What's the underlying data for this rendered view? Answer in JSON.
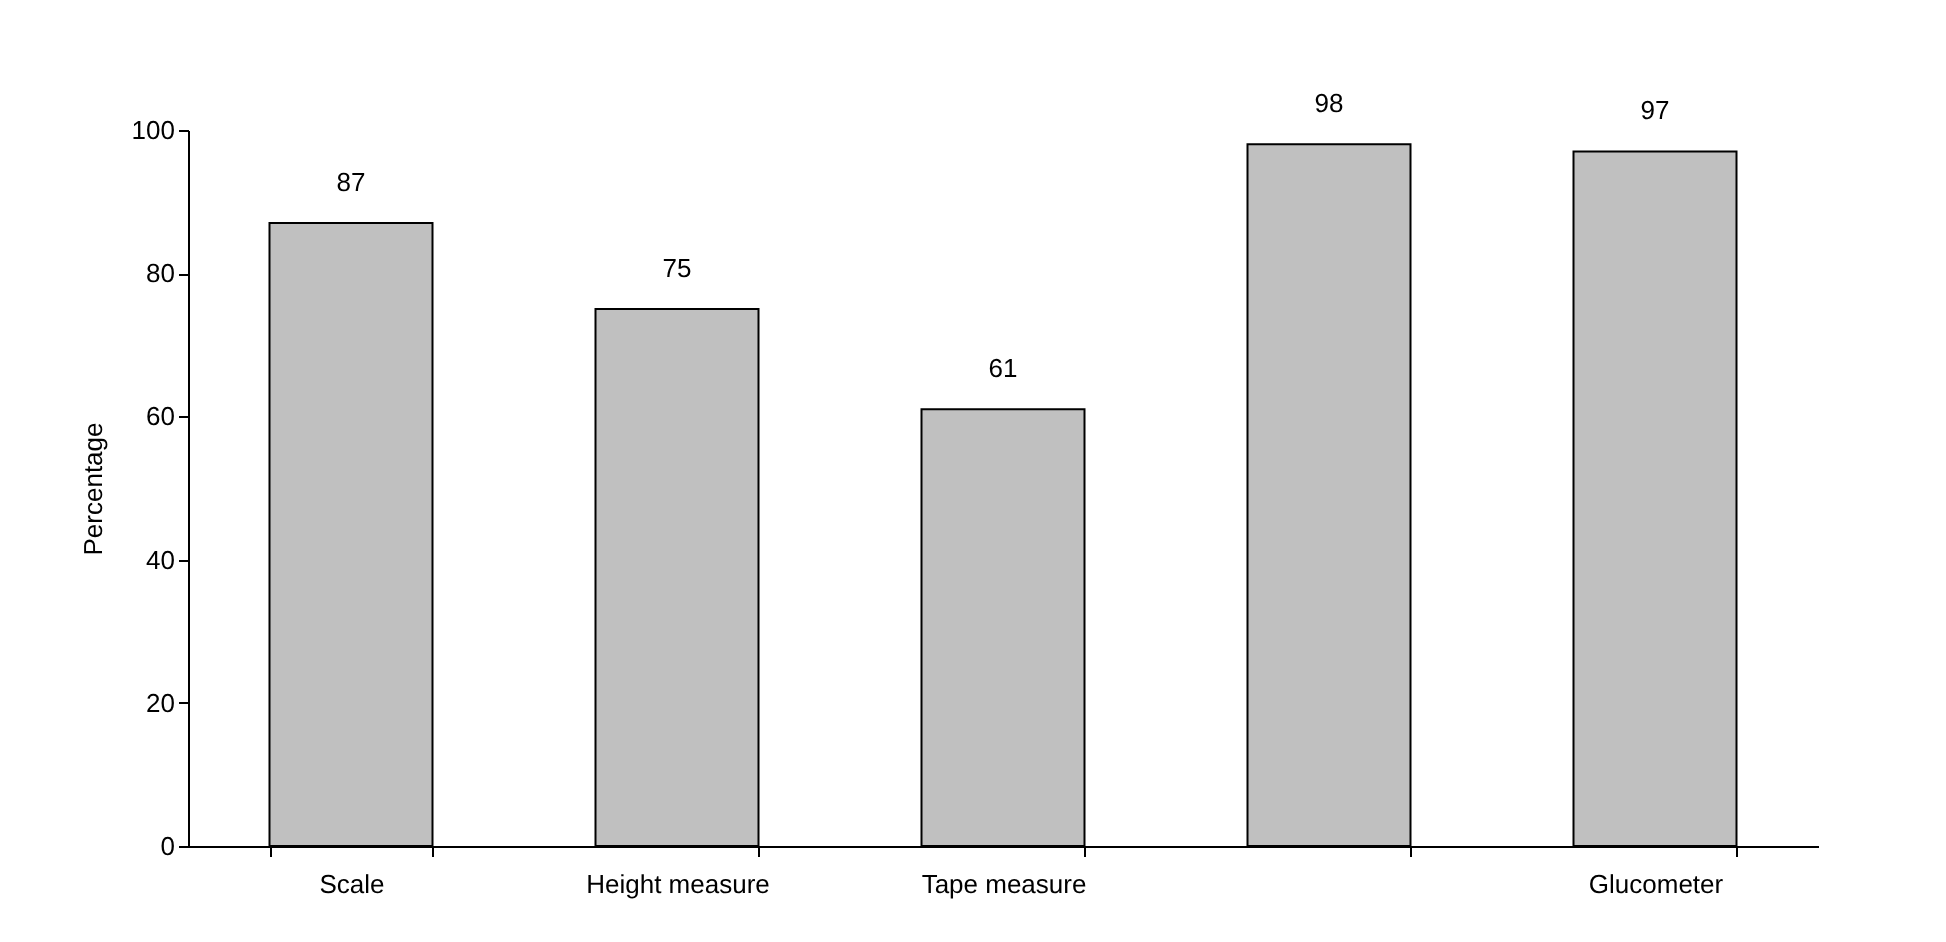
{
  "chart_data": {
    "type": "bar",
    "ylabel": "Percentage",
    "categories": [
      "Scale",
      "Height measure",
      "Tape measure",
      null,
      "Glucometer"
    ],
    "values": [
      87,
      75,
      61,
      98,
      97
    ],
    "color": "#c0c0c0",
    "ylim": [
      0,
      100
    ],
    "yticks": [
      0,
      20,
      40,
      60,
      80,
      100
    ],
    "grid": false,
    "data_labels": true
  }
}
